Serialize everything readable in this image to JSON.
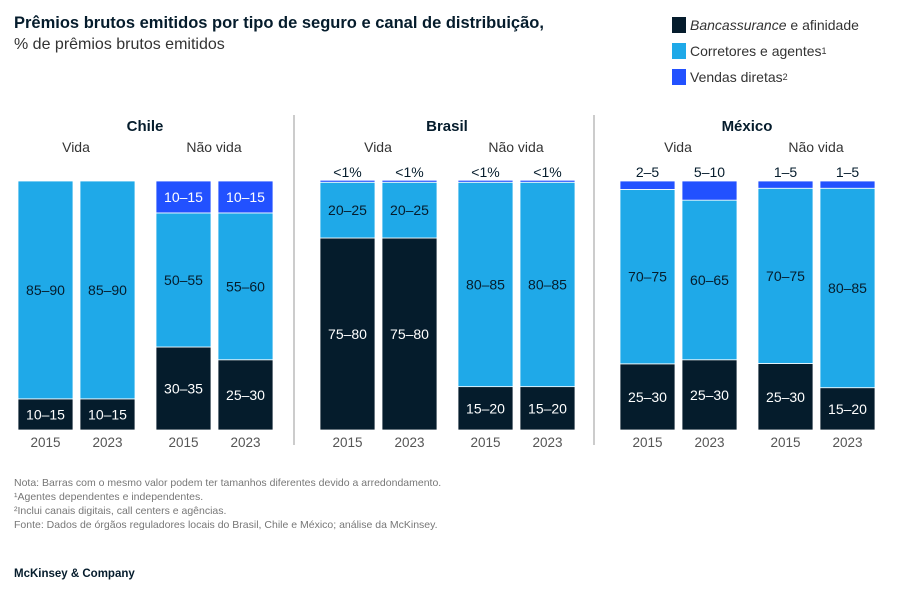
{
  "title": "Prêmios brutos emitidos por tipo de seguro e canal de distribuição,",
  "subtitle": "% de prêmios brutos emitidos",
  "legend": [
    {
      "label": "Bancassurance",
      "suffix": " e afinidade",
      "color": "#051c2c"
    },
    {
      "label": "Corretores e agentes",
      "sup": "1",
      "color": "#1fa9e8"
    },
    {
      "label": "Vendas diretas",
      "sup": "2",
      "color": "#2251ff"
    }
  ],
  "footnotes": [
    "Nota: Barras com o mesmo valor podem ter tamanhos diferentes devido a arredondamento.",
    "¹Agentes dependentes e independentes.",
    "²Inclui canais digitais, call centers e agências.",
    "Fonte: Dados de órgãos reguladores locais do Brasil, Chile e México; análise da McKinsey."
  ],
  "brand": "McKinsey & Company",
  "chart_data": {
    "type": "bar",
    "stacked": true,
    "unit": "% de prêmios brutos emitidos",
    "series_order": [
      "Bancassurance e afinidade",
      "Corretores e agentes",
      "Vendas diretas"
    ],
    "groups": [
      {
        "country": "Chile",
        "panels": [
          {
            "label": "Vida",
            "bars": [
              {
                "year": "2015",
                "values": [
                  "10–15",
                  "85–90",
                  null
                ]
              },
              {
                "year": "2023",
                "values": [
                  "10–15",
                  "85–90",
                  null
                ]
              }
            ]
          },
          {
            "label": "Não vida",
            "bars": [
              {
                "year": "2015",
                "values": [
                  "30–35",
                  "50–55",
                  "10–15"
                ]
              },
              {
                "year": "2023",
                "values": [
                  "25–30",
                  "55–60",
                  "10–15"
                ]
              }
            ]
          }
        ]
      },
      {
        "country": "Brasil",
        "panels": [
          {
            "label": "Vida",
            "bars": [
              {
                "year": "2015",
                "values": [
                  "75–80",
                  "20–25",
                  "<1%"
                ]
              },
              {
                "year": "2023",
                "values": [
                  "75–80",
                  "20–25",
                  "<1%"
                ]
              }
            ]
          },
          {
            "label": "Não vida",
            "bars": [
              {
                "year": "2015",
                "values": [
                  "15–20",
                  "80–85",
                  "<1%"
                ]
              },
              {
                "year": "2023",
                "values": [
                  "15–20",
                  "80–85",
                  "<1%"
                ]
              }
            ]
          }
        ]
      },
      {
        "country": "México",
        "panels": [
          {
            "label": "Vida",
            "bars": [
              {
                "year": "2015",
                "values": [
                  "25–30",
                  "70–75",
                  "2–5"
                ]
              },
              {
                "year": "2023",
                "values": [
                  "25–30",
                  "60–65",
                  "5–10"
                ]
              }
            ]
          },
          {
            "label": "Não vida",
            "bars": [
              {
                "year": "2015",
                "values": [
                  "25–30",
                  "70–75",
                  "1–5"
                ]
              },
              {
                "year": "2023",
                "values": [
                  "15–20",
                  "80–85",
                  "1–5"
                ]
              }
            ]
          }
        ]
      }
    ]
  }
}
